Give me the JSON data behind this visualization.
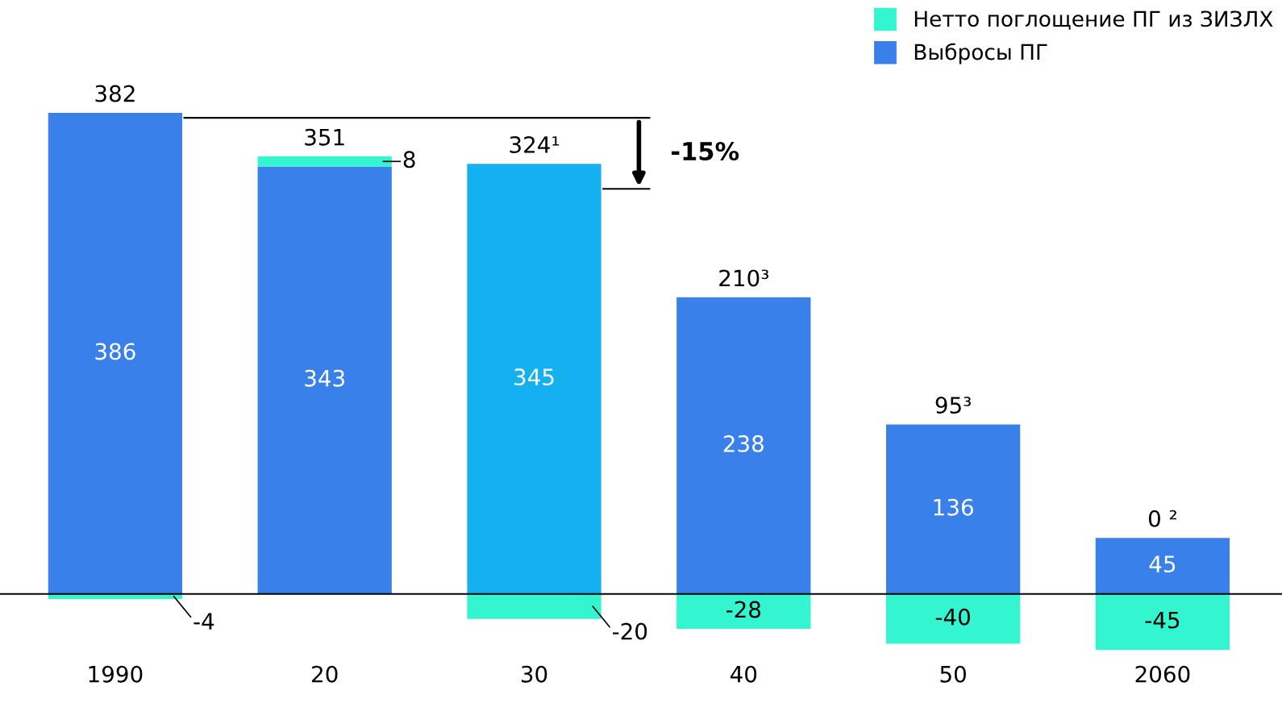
{
  "chart_data": {
    "type": "bar",
    "stacked": true,
    "categories": [
      "1990",
      "20",
      "30",
      "40",
      "50",
      "2060"
    ],
    "series": [
      {
        "name": "Выбросы ПГ",
        "color": "#3a80ea",
        "colors": [
          "#3a80ea",
          "#3a80ea",
          "#15b0f0",
          "#3a80ea",
          "#3a80ea",
          "#3a80ea"
        ],
        "values": [
          386,
          343,
          345,
          238,
          136,
          45
        ]
      },
      {
        "name": "Нетто поглощение ПГ из ЗИЗЛХ",
        "color": "#33f5d0",
        "values": [
          -4,
          8,
          -20,
          -28,
          -40,
          -45
        ]
      }
    ],
    "totals": [
      "382",
      "351",
      "324¹",
      "210³",
      "95³",
      "0 ²"
    ],
    "data_labels": true,
    "annotations": [
      "-15%"
    ],
    "ref_lines": [
      {
        "axis": "y",
        "value": 382
      }
    ],
    "legend": "top right",
    "grid": false,
    "tick_labels": "x"
  }
}
